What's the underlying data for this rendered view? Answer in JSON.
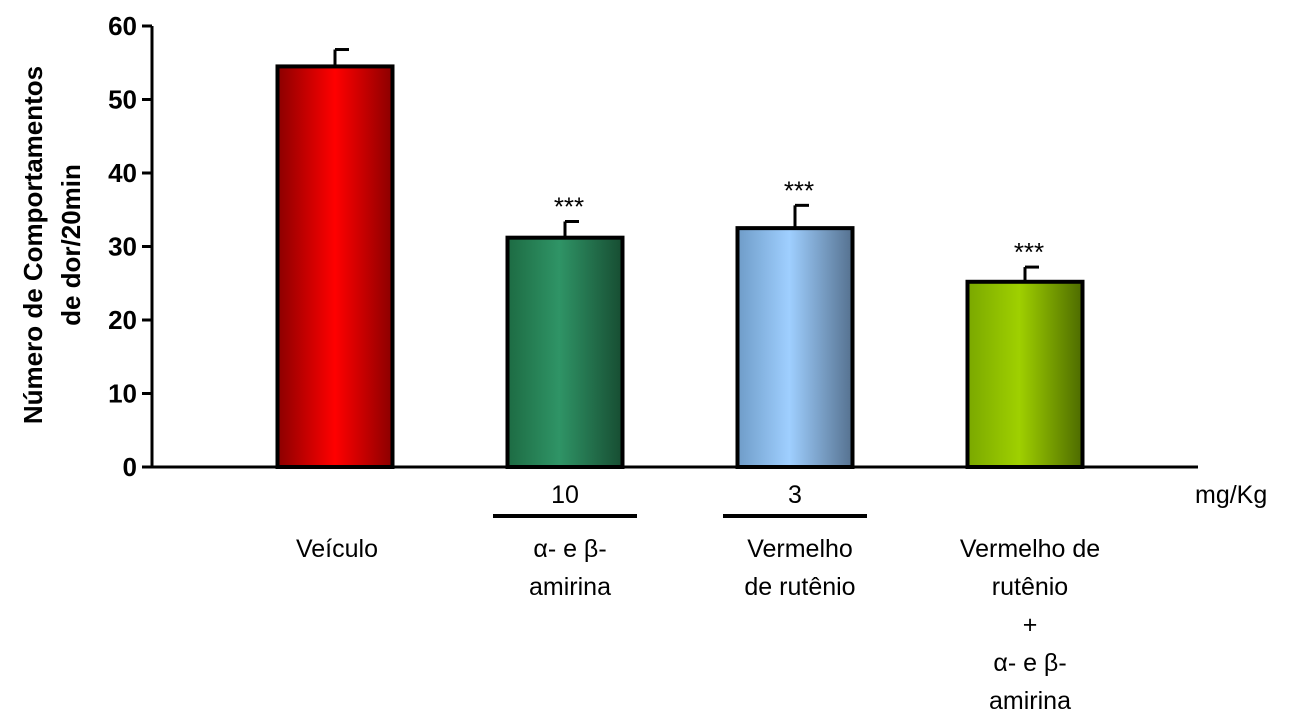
{
  "chart_data": {
    "type": "bar",
    "ylabel_lines": [
      "Número de Comportamentos",
      "de dor/20min"
    ],
    "ylim": [
      0,
      60
    ],
    "yticks": [
      0,
      10,
      20,
      30,
      40,
      50,
      60
    ],
    "unit_label": "mg/Kg",
    "categories": [
      {
        "lines": [
          "Veículo"
        ],
        "value": 54.5,
        "error": 2.3,
        "significance": "",
        "dose": "",
        "color": "#ff0000"
      },
      {
        "lines": [
          "α- e β-",
          "amirina"
        ],
        "value": 31.2,
        "error": 2.2,
        "significance": "***",
        "dose": "10",
        "color": "#2e8b5a"
      },
      {
        "lines": [
          "Vermelho",
          "de rutênio"
        ],
        "value": 32.5,
        "error": 3.1,
        "significance": "***",
        "dose": "3",
        "color": "#99ccff"
      },
      {
        "lines": [
          "Vermelho de",
          "rutênio",
          "+",
          "α- e β-",
          "amirina"
        ],
        "value": 25.2,
        "error": 2.0,
        "significance": "***",
        "dose": "",
        "color": "#99cc00"
      }
    ]
  }
}
